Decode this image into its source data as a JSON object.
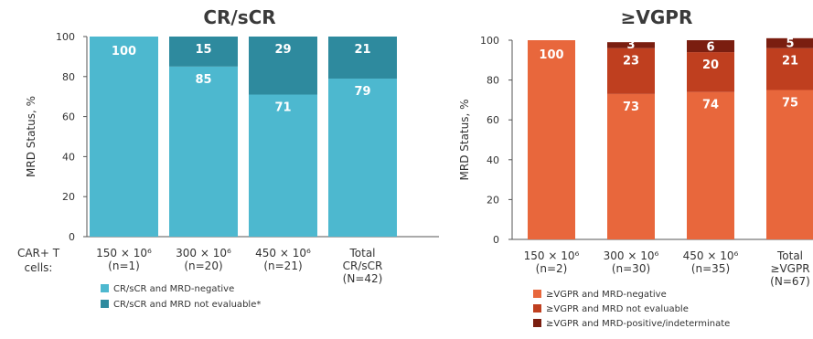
{
  "chart_data": [
    {
      "type": "bar",
      "stacked": true,
      "title": "CR/sCR",
      "ylabel": "MRD Status, %",
      "ylim": [
        0,
        100
      ],
      "yticks": [
        0,
        20,
        40,
        60,
        80,
        100
      ],
      "row_label": [
        "CAR+ T",
        "cells:"
      ],
      "categories": [
        [
          "150 × 10⁶",
          "(n=1)"
        ],
        [
          "300 × 10⁶",
          "(n=20)"
        ],
        [
          "450 × 10⁶",
          "(n=21)"
        ],
        [
          "Total",
          "CR/sCR",
          "(N=42)"
        ]
      ],
      "series": [
        {
          "name": "CR/sCR and MRD-negative",
          "color": "#4db8cf",
          "values": [
            100,
            85,
            71,
            79
          ],
          "labels": [
            "100",
            "85",
            "71",
            "79"
          ]
        },
        {
          "name": "CR/sCR and MRD not evaluable*",
          "color": "#2e8a9e",
          "values": [
            0,
            15,
            29,
            21
          ],
          "labels": [
            "",
            "15",
            "29",
            "21"
          ]
        }
      ],
      "legend_position": "bottom-left",
      "grid": false
    },
    {
      "type": "bar",
      "stacked": true,
      "title": "≥VGPR",
      "ylabel": "MRD Status, %",
      "ylim": [
        0,
        100
      ],
      "yticks": [
        0,
        20,
        40,
        60,
        80,
        100
      ],
      "categories": [
        [
          "150 × 10⁶",
          "(n=2)"
        ],
        [
          "300 × 10⁶",
          "(n=30)"
        ],
        [
          "450 × 10⁶",
          "(n=35)"
        ],
        [
          "Total",
          "≥VGPR",
          "(N=67)"
        ]
      ],
      "series": [
        {
          "name": "≥VGPR and MRD-negative",
          "color": "#e8673c",
          "values": [
            100,
            73,
            74,
            75
          ],
          "labels": [
            "100",
            "73",
            "74",
            "75"
          ]
        },
        {
          "name": "≥VGPR and MRD not evaluable",
          "color": "#bf3f1f",
          "values": [
            0,
            23,
            20,
            21
          ],
          "labels": [
            "",
            "23",
            "20",
            "21"
          ]
        },
        {
          "name": "≥VGPR and MRD-positive/indeterminate",
          "color": "#7a1e10",
          "values": [
            0,
            3,
            6,
            5
          ],
          "labels": [
            "",
            "3",
            "6",
            "5"
          ]
        }
      ],
      "legend_position": "bottom-left",
      "grid": false
    }
  ]
}
